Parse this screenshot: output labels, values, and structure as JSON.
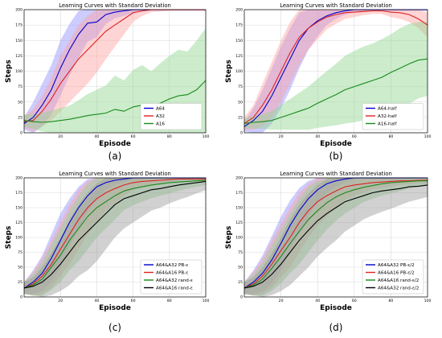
{
  "chart_data": [
    {
      "type": "line",
      "title": "Learning Curves with Standard Deviation",
      "xlabel": "Episode",
      "ylabel": "Steps",
      "panel_label": "(a)",
      "xlim": [
        0,
        100
      ],
      "ylim": [
        0,
        200
      ],
      "xticks": [
        "20",
        "40",
        "60",
        "80",
        "100"
      ],
      "yticks": [
        "0",
        "25",
        "50",
        "75",
        "100",
        "125",
        "150",
        "175",
        "200"
      ],
      "grid": true,
      "legend": "bottom-right",
      "series": [
        {
          "name": "A64",
          "color": "#0000cc",
          "fill": "#8f8fff",
          "x": [
            0,
            5,
            10,
            15,
            20,
            25,
            30,
            35,
            40,
            45,
            50,
            55,
            60,
            65,
            70,
            75,
            80,
            85,
            90,
            95,
            100
          ],
          "values": [
            15,
            25,
            45,
            70,
            105,
            135,
            160,
            178,
            180,
            192,
            196,
            198,
            200,
            200,
            200,
            200,
            200,
            200,
            200,
            200,
            200
          ],
          "spread": [
            10,
            25,
            35,
            40,
            45,
            42,
            38,
            30,
            25,
            15,
            10,
            8,
            5,
            3,
            2,
            2,
            2,
            2,
            2,
            2,
            2
          ]
        },
        {
          "name": "A32",
          "color": "#dd2222",
          "fill": "#ff9f9f",
          "x": [
            0,
            5,
            10,
            15,
            20,
            25,
            30,
            35,
            40,
            45,
            50,
            55,
            60,
            65,
            70,
            75,
            80,
            85,
            90,
            95,
            100
          ],
          "values": [
            18,
            20,
            35,
            55,
            80,
            100,
            120,
            135,
            150,
            165,
            175,
            185,
            195,
            198,
            200,
            200,
            200,
            200,
            200,
            200,
            200
          ],
          "spread": [
            10,
            18,
            25,
            35,
            45,
            50,
            55,
            55,
            52,
            45,
            35,
            25,
            15,
            8,
            4,
            3,
            2,
            2,
            2,
            2,
            2
          ]
        },
        {
          "name": "A16",
          "color": "#1a8a1a",
          "fill": "#8fd48f",
          "x": [
            0,
            5,
            10,
            15,
            20,
            25,
            30,
            35,
            40,
            45,
            50,
            55,
            60,
            65,
            70,
            75,
            80,
            85,
            90,
            95,
            100
          ],
          "values": [
            20,
            18,
            17,
            18,
            20,
            22,
            25,
            28,
            30,
            32,
            38,
            35,
            42,
            45,
            40,
            48,
            55,
            60,
            62,
            70,
            85
          ],
          "spread": [
            10,
            12,
            15,
            18,
            20,
            22,
            28,
            35,
            40,
            45,
            55,
            50,
            60,
            65,
            60,
            65,
            70,
            75,
            70,
            80,
            85
          ]
        }
      ]
    },
    {
      "type": "line",
      "title": "Learning Curves with Standard Deviation",
      "xlabel": "Episode",
      "ylabel": "Steps",
      "panel_label": "(b)",
      "xlim": [
        0,
        100
      ],
      "ylim": [
        0,
        200
      ],
      "xticks": [
        "20",
        "40",
        "60",
        "80",
        "100"
      ],
      "yticks": [
        "0",
        "25",
        "50",
        "75",
        "100",
        "125",
        "150",
        "175",
        "200"
      ],
      "grid": true,
      "legend": "bottom-right",
      "series": [
        {
          "name": "A64-half",
          "color": "#0000cc",
          "fill": "#8f8fff",
          "x": [
            0,
            5,
            10,
            15,
            20,
            25,
            30,
            35,
            40,
            45,
            50,
            55,
            60,
            65,
            70,
            75,
            80,
            85,
            90,
            95,
            100
          ],
          "values": [
            10,
            20,
            35,
            60,
            90,
            120,
            150,
            170,
            182,
            190,
            195,
            198,
            200,
            200,
            200,
            200,
            200,
            200,
            200,
            200,
            200
          ],
          "spread": [
            8,
            20,
            35,
            45,
            50,
            50,
            45,
            35,
            25,
            15,
            10,
            6,
            4,
            3,
            2,
            2,
            2,
            2,
            2,
            2,
            2
          ]
        },
        {
          "name": "A32-half",
          "color": "#dd2222",
          "fill": "#ff9f9f",
          "x": [
            0,
            5,
            10,
            15,
            20,
            25,
            30,
            35,
            40,
            45,
            50,
            55,
            60,
            65,
            70,
            75,
            80,
            85,
            90,
            95,
            100
          ],
          "values": [
            15,
            25,
            45,
            70,
            100,
            130,
            155,
            170,
            180,
            188,
            192,
            195,
            196,
            197,
            198,
            198,
            196,
            195,
            192,
            185,
            175
          ],
          "spread": [
            10,
            20,
            35,
            45,
            50,
            50,
            45,
            35,
            28,
            20,
            15,
            10,
            8,
            6,
            5,
            5,
            8,
            10,
            12,
            15,
            20
          ]
        },
        {
          "name": "A16-half",
          "color": "#1a8a1a",
          "fill": "#8fd48f",
          "x": [
            0,
            5,
            10,
            15,
            20,
            25,
            30,
            35,
            40,
            45,
            50,
            55,
            60,
            65,
            70,
            75,
            80,
            85,
            90,
            95,
            100
          ],
          "values": [
            15,
            17,
            18,
            20,
            25,
            30,
            35,
            40,
            48,
            55,
            62,
            70,
            75,
            80,
            85,
            90,
            98,
            105,
            112,
            118,
            120
          ],
          "spread": [
            8,
            10,
            12,
            15,
            20,
            25,
            30,
            35,
            40,
            45,
            50,
            55,
            58,
            60,
            60,
            62,
            62,
            65,
            65,
            62,
            60
          ]
        }
      ]
    },
    {
      "type": "line",
      "title": "Learning Curves with Standard Deviation",
      "xlabel": "Episode",
      "ylabel": "Steps",
      "panel_label": "(c)",
      "xlim": [
        0,
        100
      ],
      "ylim": [
        0,
        200
      ],
      "xticks": [
        "20",
        "40",
        "60",
        "80",
        "100"
      ],
      "yticks": [
        "0",
        "25",
        "50",
        "75",
        "100",
        "125",
        "150",
        "175",
        "200"
      ],
      "grid": true,
      "legend": "bottom-right",
      "series": [
        {
          "name": "A64&A32 PB-ε",
          "color": "#0000cc",
          "fill": "#8f8fff",
          "x": [
            0,
            5,
            10,
            15,
            20,
            25,
            30,
            35,
            40,
            45,
            50,
            55,
            60,
            65,
            70,
            75,
            80,
            85,
            90,
            95,
            100
          ],
          "values": [
            15,
            25,
            40,
            65,
            95,
            125,
            150,
            170,
            185,
            192,
            196,
            198,
            200,
            200,
            200,
            200,
            200,
            200,
            200,
            200,
            200
          ],
          "spread": [
            10,
            20,
            30,
            40,
            45,
            40,
            35,
            28,
            20,
            12,
            8,
            5,
            3,
            2,
            2,
            2,
            2,
            2,
            2,
            2,
            2
          ]
        },
        {
          "name": "A64&A16 PB-ε",
          "color": "#dd2222",
          "fill": "#ff9f9f",
          "x": [
            0,
            5,
            10,
            15,
            20,
            25,
            30,
            35,
            40,
            45,
            50,
            55,
            60,
            65,
            70,
            75,
            80,
            85,
            90,
            95,
            100
          ],
          "values": [
            15,
            22,
            35,
            55,
            80,
            105,
            130,
            150,
            165,
            175,
            182,
            188,
            192,
            194,
            195,
            196,
            197,
            198,
            198,
            198,
            198
          ],
          "spread": [
            10,
            20,
            30,
            40,
            45,
            50,
            50,
            45,
            40,
            30,
            25,
            18,
            12,
            10,
            8,
            6,
            5,
            5,
            4,
            4,
            4
          ]
        },
        {
          "name": "A64&A32 rand-ε",
          "color": "#1a8a1a",
          "fill": "#8fd48f",
          "x": [
            0,
            5,
            10,
            15,
            20,
            25,
            30,
            35,
            40,
            45,
            50,
            55,
            60,
            65,
            70,
            75,
            80,
            85,
            90,
            95,
            100
          ],
          "values": [
            15,
            20,
            30,
            50,
            70,
            95,
            115,
            135,
            150,
            160,
            170,
            178,
            182,
            185,
            188,
            190,
            192,
            193,
            194,
            195,
            196
          ],
          "spread": [
            10,
            18,
            28,
            38,
            45,
            50,
            55,
            55,
            50,
            45,
            40,
            32,
            28,
            25,
            22,
            20,
            18,
            15,
            12,
            10,
            8
          ]
        },
        {
          "name": "A64&A16 rand-ε",
          "color": "#000000",
          "fill": "#9a9a9a",
          "x": [
            0,
            5,
            10,
            15,
            20,
            25,
            30,
            35,
            40,
            45,
            50,
            55,
            60,
            65,
            70,
            75,
            80,
            85,
            90,
            95,
            100
          ],
          "values": [
            15,
            18,
            25,
            38,
            55,
            75,
            95,
            110,
            125,
            140,
            155,
            165,
            170,
            175,
            180,
            182,
            185,
            188,
            190,
            192,
            194
          ],
          "spread": [
            10,
            15,
            25,
            35,
            45,
            55,
            60,
            65,
            65,
            60,
            55,
            50,
            45,
            40,
            35,
            32,
            28,
            25,
            22,
            18,
            15
          ]
        }
      ]
    },
    {
      "type": "line",
      "title": "Learning Curves with Standard Deviation",
      "xlabel": "Episode",
      "ylabel": "Steps",
      "panel_label": "(d)",
      "xlim": [
        0,
        100
      ],
      "ylim": [
        0,
        200
      ],
      "xticks": [
        "20",
        "40",
        "60",
        "80",
        "100"
      ],
      "yticks": [
        "0",
        "25",
        "50",
        "75",
        "100",
        "125",
        "150",
        "175",
        "200"
      ],
      "grid": true,
      "legend": "bottom-right",
      "series": [
        {
          "name": "A64&A32 PB-ε/2",
          "color": "#0000cc",
          "fill": "#8f8fff",
          "x": [
            0,
            5,
            10,
            15,
            20,
            25,
            30,
            35,
            40,
            45,
            50,
            55,
            60,
            65,
            70,
            75,
            80,
            85,
            90,
            95,
            100
          ],
          "values": [
            15,
            25,
            40,
            62,
            90,
            120,
            145,
            165,
            180,
            190,
            195,
            198,
            200,
            200,
            200,
            200,
            200,
            200,
            200,
            200,
            200
          ],
          "spread": [
            10,
            20,
            30,
            40,
            45,
            42,
            38,
            30,
            22,
            15,
            10,
            6,
            3,
            2,
            2,
            2,
            2,
            2,
            2,
            2,
            2
          ]
        },
        {
          "name": "A64&A16 PB-ε/2",
          "color": "#dd2222",
          "fill": "#ff9f9f",
          "x": [
            0,
            5,
            10,
            15,
            20,
            25,
            30,
            35,
            40,
            45,
            50,
            55,
            60,
            65,
            70,
            75,
            80,
            85,
            90,
            95,
            100
          ],
          "values": [
            15,
            22,
            35,
            55,
            78,
            100,
            125,
            145,
            160,
            170,
            178,
            185,
            188,
            190,
            192,
            193,
            194,
            195,
            195,
            196,
            196
          ],
          "spread": [
            10,
            20,
            30,
            40,
            45,
            50,
            50,
            45,
            40,
            35,
            28,
            22,
            18,
            15,
            12,
            10,
            8,
            7,
            6,
            5,
            5
          ]
        },
        {
          "name": "A64&A16 rand-ε/2",
          "color": "#1a8a1a",
          "fill": "#8fd48f",
          "x": [
            0,
            5,
            10,
            15,
            20,
            25,
            30,
            35,
            40,
            45,
            50,
            55,
            60,
            65,
            70,
            75,
            80,
            85,
            90,
            95,
            100
          ],
          "values": [
            15,
            20,
            30,
            48,
            68,
            90,
            110,
            130,
            145,
            158,
            168,
            175,
            180,
            184,
            187,
            190,
            192,
            193,
            194,
            195,
            195
          ],
          "spread": [
            10,
            18,
            28,
            38,
            45,
            50,
            55,
            55,
            50,
            45,
            40,
            35,
            30,
            25,
            22,
            20,
            18,
            15,
            12,
            10,
            8
          ]
        },
        {
          "name": "A64&A32 rand-ε/2",
          "color": "#000000",
          "fill": "#9a9a9a",
          "x": [
            0,
            5,
            10,
            15,
            20,
            25,
            30,
            35,
            40,
            45,
            50,
            55,
            60,
            65,
            70,
            75,
            80,
            85,
            90,
            95,
            100
          ],
          "values": [
            15,
            18,
            25,
            38,
            55,
            75,
            95,
            112,
            128,
            140,
            150,
            160,
            165,
            170,
            175,
            178,
            180,
            182,
            185,
            186,
            188
          ],
          "spread": [
            10,
            15,
            25,
            35,
            45,
            55,
            60,
            62,
            60,
            58,
            55,
            50,
            45,
            40,
            38,
            35,
            32,
            28,
            25,
            22,
            20
          ]
        }
      ]
    }
  ]
}
